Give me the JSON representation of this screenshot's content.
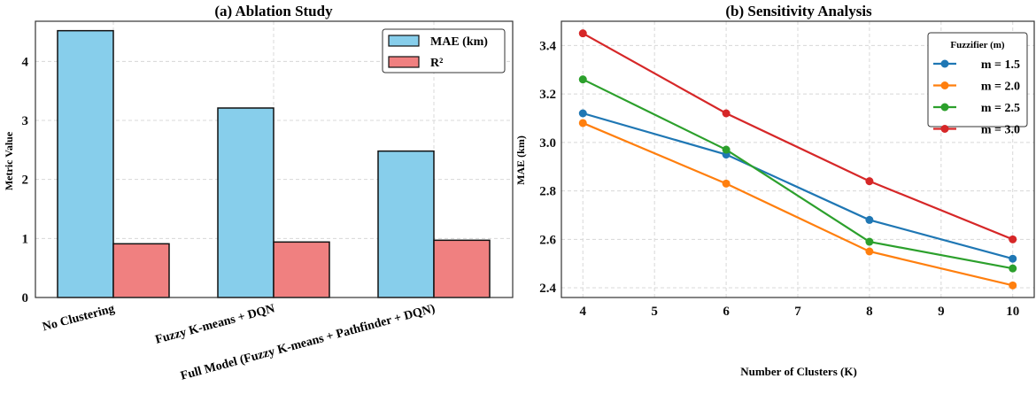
{
  "chart_data": [
    {
      "type": "bar",
      "title": "(a) Ablation Study",
      "xlabel": "",
      "ylabel": "Metric Value",
      "ylim": [
        0,
        4.68
      ],
      "yticks": [
        "0",
        "1",
        "2",
        "3",
        "4"
      ],
      "categories": [
        "No Clustering",
        "Fuzzy K-means + DQN",
        "Full Model (Fuzzy K-means + Pathfinder + DQN)"
      ],
      "series": [
        {
          "name": "MAE (km)",
          "color": "#87ceeb",
          "values": [
            4.52,
            3.21,
            2.48
          ]
        },
        {
          "name": "R²",
          "color": "#f08080",
          "values": [
            0.91,
            0.94,
            0.97
          ]
        }
      ],
      "legend": "top-right",
      "grid": true
    },
    {
      "type": "line",
      "title": "(b) Sensitivity Analysis",
      "xlabel": "Number of Clusters (K)",
      "ylabel": "MAE (km)",
      "xlim": [
        3.7,
        10.3
      ],
      "ylim": [
        2.36,
        3.5
      ],
      "xticks": [
        "4",
        "5",
        "6",
        "7",
        "8",
        "9",
        "10"
      ],
      "yticks": [
        "2.4",
        "2.6",
        "2.8",
        "3.0",
        "3.2",
        "3.4"
      ],
      "x": [
        4,
        6,
        8,
        10
      ],
      "legend_title": "Fuzzifier (m)",
      "legend": "top-right",
      "grid": true,
      "series": [
        {
          "name": "m = 1.5",
          "color": "#1f77b4",
          "values": [
            3.12,
            2.95,
            2.68,
            2.52
          ]
        },
        {
          "name": "m = 2.0",
          "color": "#ff7f0e",
          "values": [
            3.08,
            2.83,
            2.55,
            2.41
          ]
        },
        {
          "name": "m = 2.5",
          "color": "#2ca02c",
          "values": [
            3.26,
            2.97,
            2.59,
            2.48
          ]
        },
        {
          "name": "m = 3.0",
          "color": "#d62728",
          "values": [
            3.45,
            3.12,
            2.84,
            2.6
          ]
        }
      ]
    }
  ]
}
